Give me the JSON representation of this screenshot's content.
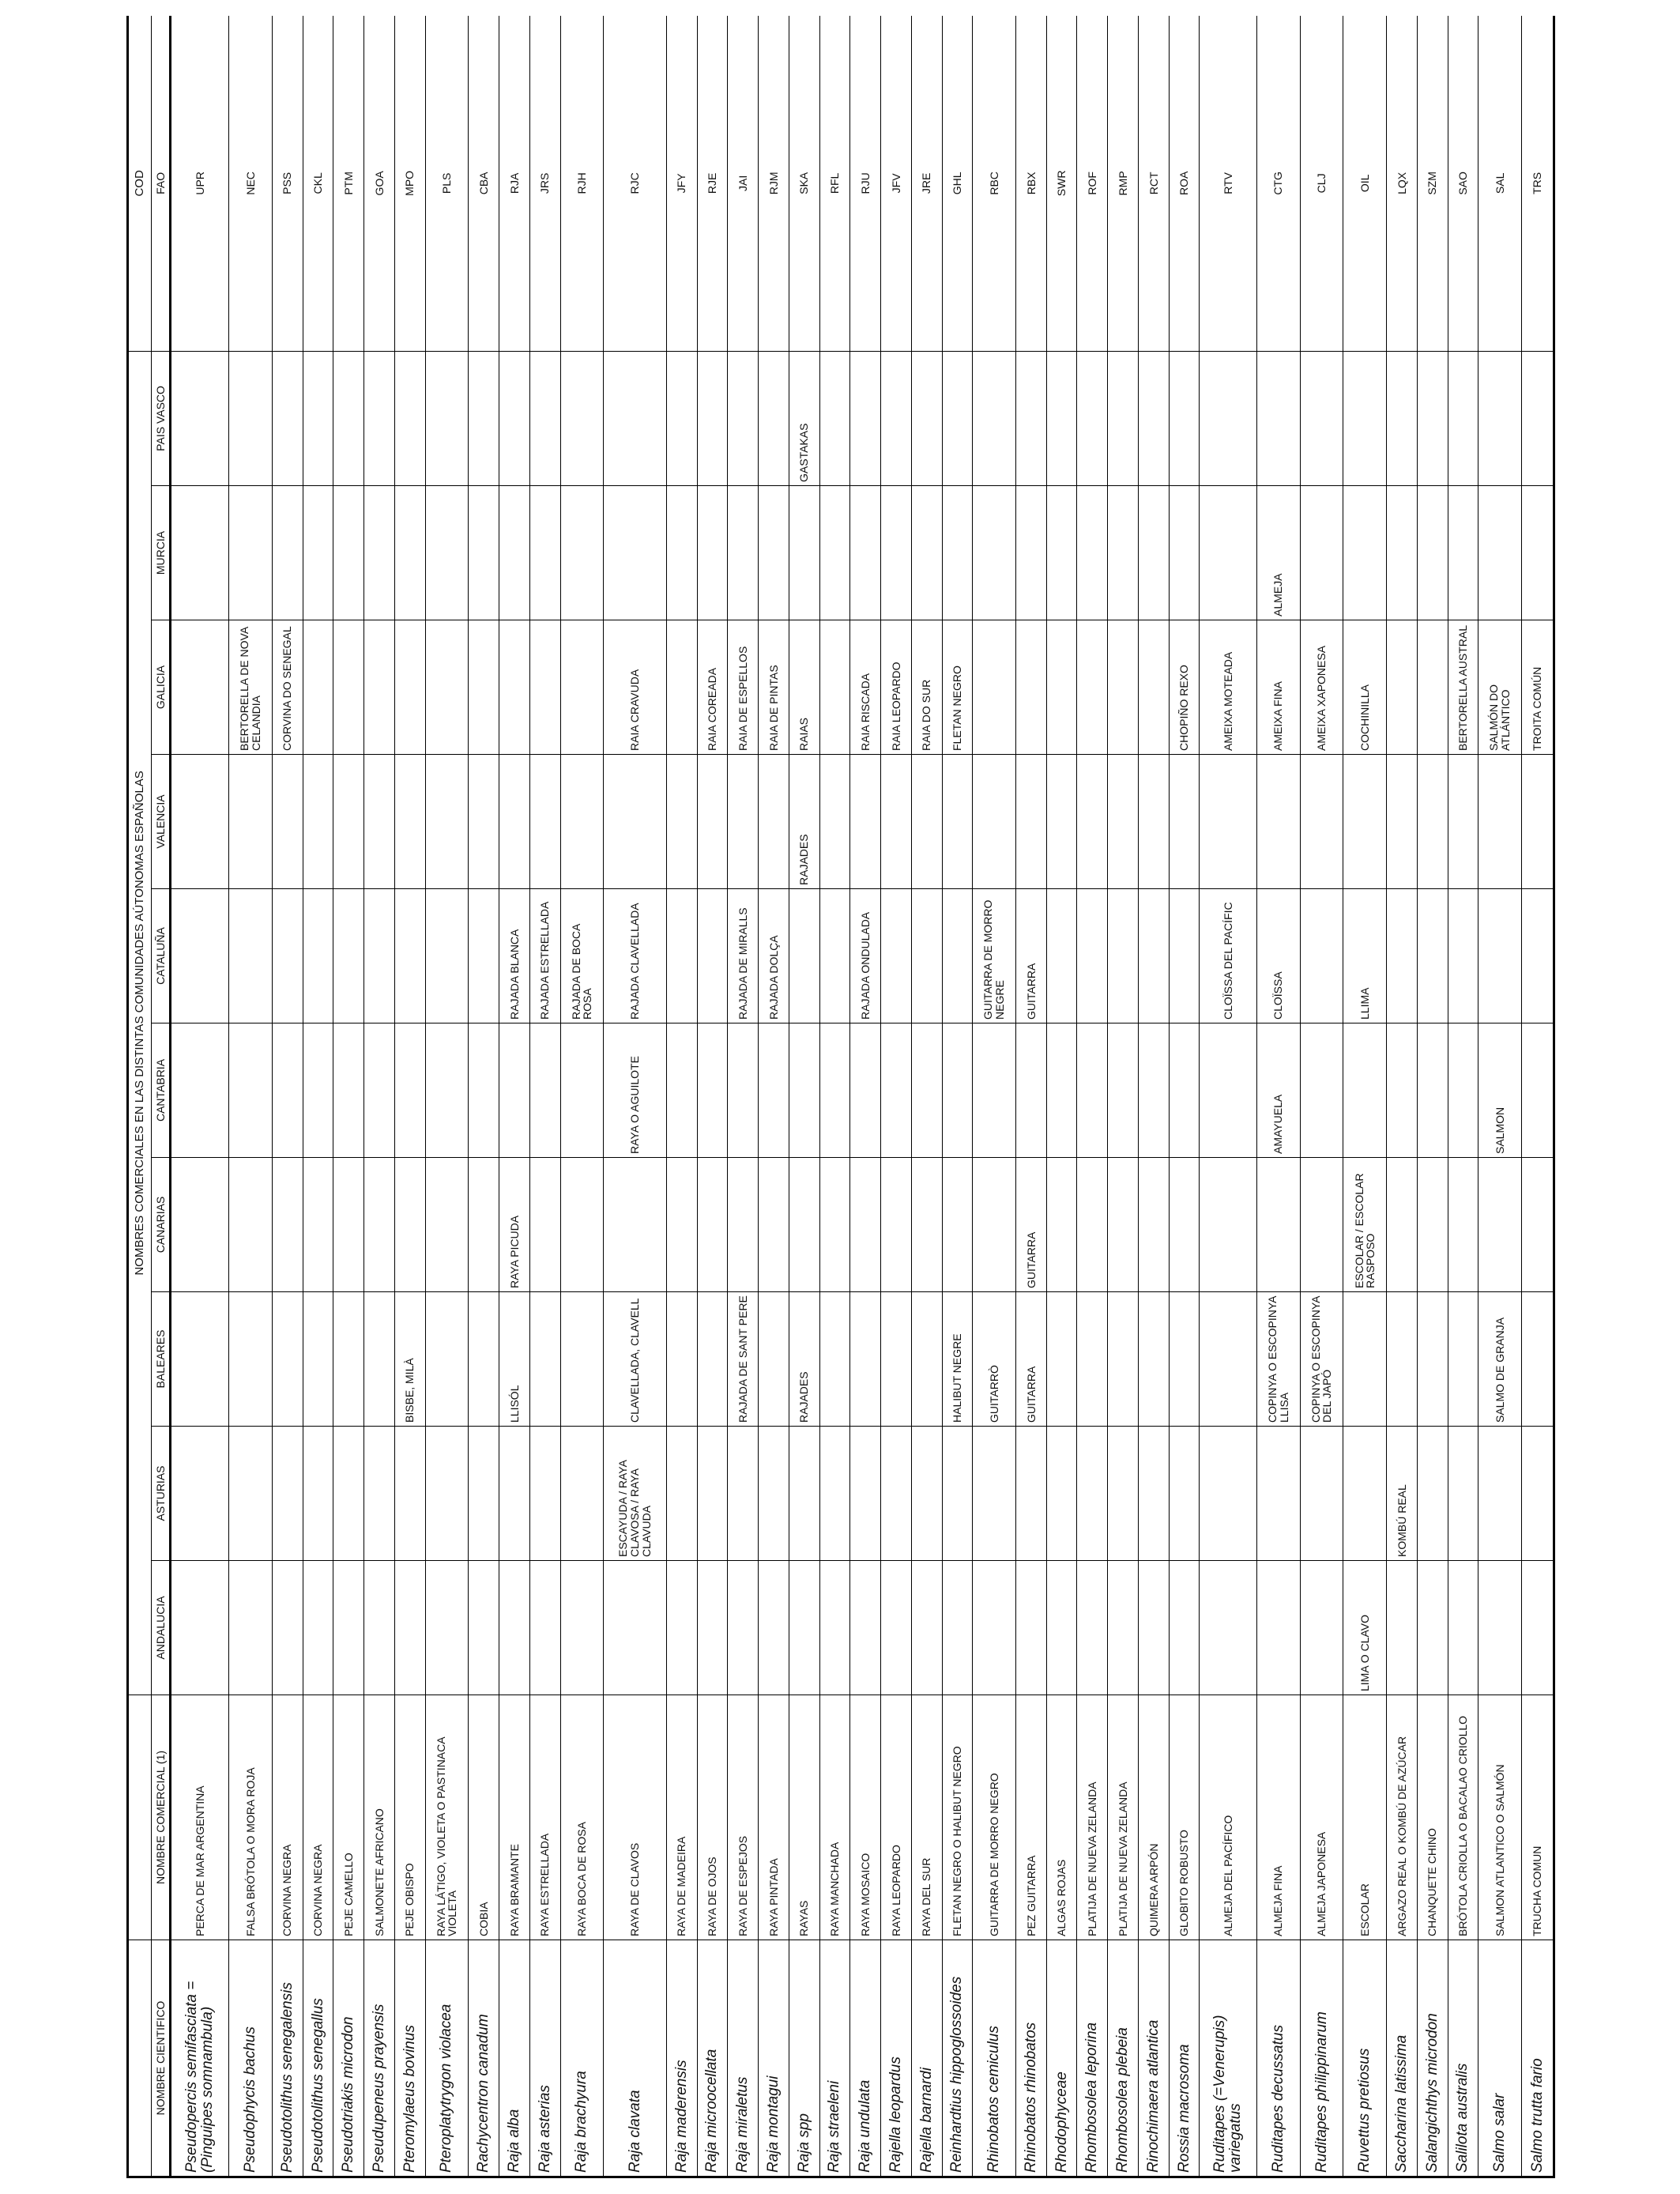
{
  "headers": {
    "sci": "NOMBRE CIENTIFICO",
    "com": "NOMBRE COMERCIAL (1)",
    "group": "NOMBRES COMERCIALES EN LAS DISTINTAS COMUNIDADES AÚTONOMAS ESPAÑOLAS",
    "regions": [
      "ANDALUCIA",
      "ASTURIAS",
      "BALEARES",
      "CANARIAS",
      "CANTABRIA",
      "CATALUÑA",
      "VALENCIA",
      "GALICIA",
      "MURCIA",
      "PAIS VASCO"
    ],
    "cod": "COD",
    "fao": "FAO"
  },
  "rows": [
    {
      "sci": "Pseudopercis semifasciata =(Pinguipes somnambula)",
      "com": "PERCA DE MAR ARGENTINA",
      "regions": [
        "",
        "",
        "",
        "",
        "",
        "",
        "",
        "",
        "",
        ""
      ],
      "fao": "UPR"
    },
    {
      "sci": "Pseudophycis bachus",
      "com": "FALSA BRÓTOLA O MORA ROJA",
      "regions": [
        "",
        "",
        "",
        "",
        "",
        "",
        "",
        "BERTORELLA DE NOVA CELANDIA",
        "",
        ""
      ],
      "fao": "NEC"
    },
    {
      "sci": "Pseudotolithus senegalensis",
      "com": "CORVINA NEGRA",
      "regions": [
        "",
        "",
        "",
        "",
        "",
        "",
        "",
        "CORVINA DO SENEGAL",
        "",
        ""
      ],
      "fao": "PSS"
    },
    {
      "sci": "Pseudotolithus senegallus",
      "com": "CORVINA NEGRA",
      "regions": [
        "",
        "",
        "",
        "",
        "",
        "",
        "",
        "",
        "",
        ""
      ],
      "fao": "CKL"
    },
    {
      "sci": "Pseudotriakis microdon",
      "com": "PEJE CAMELLO",
      "regions": [
        "",
        "",
        "",
        "",
        "",
        "",
        "",
        "",
        "",
        ""
      ],
      "fao": "PTM"
    },
    {
      "sci": "Pseudupeneus prayensis",
      "com": "SALMONETE AFRICANO",
      "regions": [
        "",
        "",
        "",
        "",
        "",
        "",
        "",
        "",
        "",
        ""
      ],
      "fao": "GOA"
    },
    {
      "sci": "Pteromylaeus bovinus",
      "com": "PEJE OBISPO",
      "regions": [
        "",
        "",
        "BISBE, MILÀ",
        "",
        "",
        "",
        "",
        "",
        "",
        ""
      ],
      "fao": "MPO"
    },
    {
      "sci": "Pteroplatytrygon violacea",
      "com": "RAYA LÁTIGO, VIOLETA O PASTINACA VIOLETA",
      "regions": [
        "",
        "",
        "",
        "",
        "",
        "",
        "",
        "",
        "",
        ""
      ],
      "fao": "PLS"
    },
    {
      "sci": "Rachycentron canadum",
      "com": "COBIA",
      "regions": [
        "",
        "",
        "",
        "",
        "",
        "",
        "",
        "",
        "",
        ""
      ],
      "fao": "CBA"
    },
    {
      "sci": "Raja alba",
      "com": "RAYA BRAMANTE",
      "regions": [
        "",
        "",
        "LLISÓL",
        "RAYA PICUDA",
        "",
        "RAJADA BLANCA",
        "",
        "",
        "",
        ""
      ],
      "fao": "RJA"
    },
    {
      "sci": "Raja asterias",
      "com": "RAYA ESTRELLADA",
      "regions": [
        "",
        "",
        "",
        "",
        "",
        "RAJADA ESTRELLADA",
        "",
        "",
        "",
        ""
      ],
      "fao": "JRS"
    },
    {
      "sci": "Raja brachyura",
      "com": "RAYA BOCA DE ROSA",
      "regions": [
        "",
        "",
        "",
        "",
        "",
        "RAJADA DE BOCA ROSA",
        "",
        "",
        "",
        ""
      ],
      "fao": "RJH"
    },
    {
      "sci": "Raja clavata",
      "com": "RAYA DE CLAVOS",
      "regions": [
        "",
        "ESCAYUDA / RAYA CLAVOSA / RAYA CLAVUDA",
        "CLAVELLADA, CLAVELL",
        "",
        "RAYA O AGUILOTE",
        "RAJADA CLAVELLADA",
        "",
        "RAIA CRAVUDA",
        "",
        ""
      ],
      "fao": "RJC"
    },
    {
      "sci": "Raja maderensis",
      "com": "RAYA DE MADEIRA",
      "regions": [
        "",
        "",
        "",
        "",
        "",
        "",
        "",
        "",
        "",
        ""
      ],
      "fao": "JFY"
    },
    {
      "sci": "Raja microocellata",
      "com": "RAYA DE OJOS",
      "regions": [
        "",
        "",
        "",
        "",
        "",
        "",
        "",
        "RAIA COREADA",
        "",
        ""
      ],
      "fao": "RJE"
    },
    {
      "sci": "Raja miraletus",
      "com": "RAYA DE ESPEJOS",
      "regions": [
        "",
        "",
        "RAJADA DE SANT PERE",
        "",
        "",
        "RAJADA DE MIRALLS",
        "",
        "RAIA DE ESPELLOS",
        "",
        ""
      ],
      "fao": "JAI"
    },
    {
      "sci": "Raja montagui",
      "com": "RAYA PINTADA",
      "regions": [
        "",
        "",
        "",
        "",
        "",
        "RAJADA DOLÇA",
        "",
        "RAIA DE PINTAS",
        "",
        ""
      ],
      "fao": "RJM"
    },
    {
      "sci": "Raja spp",
      "com": "RAYAS",
      "regions": [
        "",
        "",
        "RAJADES",
        "",
        "",
        "",
        "RAJADES",
        "RAIAS",
        "",
        "GASTAKAS"
      ],
      "fao": "SKA"
    },
    {
      "sci": "Raja straeleni",
      "com": "RAYA MANCHADA",
      "regions": [
        "",
        "",
        "",
        "",
        "",
        "",
        "",
        "",
        "",
        ""
      ],
      "fao": "RFL"
    },
    {
      "sci": "Raja undulata",
      "com": "RAYA MOSAICO",
      "regions": [
        "",
        "",
        "",
        "",
        "",
        "RAJADA ONDULADA",
        "",
        "RAIA RISCADA",
        "",
        ""
      ],
      "fao": "RJU"
    },
    {
      "sci": "Rajella leopardus",
      "com": "RAYA LEOPARDO",
      "regions": [
        "",
        "",
        "",
        "",
        "",
        "",
        "",
        "RAIA LEOPARDO",
        "",
        ""
      ],
      "fao": "JFV"
    },
    {
      "sci": "Rajella barnardi",
      "com": "RAYA DEL SUR",
      "regions": [
        "",
        "",
        "",
        "",
        "",
        "",
        "",
        "RAIA DO SUR",
        "",
        ""
      ],
      "fao": "JRE"
    },
    {
      "sci": "Reinhardtius hippoglossoides",
      "com": "FLETAN NEGRO O HALIBUT NEGRO",
      "regions": [
        "",
        "",
        "HALIBUT NEGRE",
        "",
        "",
        "",
        "",
        "FLETAN NEGRO",
        "",
        ""
      ],
      "fao": "GHL"
    },
    {
      "sci": "Rhinobatos cemiculus",
      "com": "GUITARRA DE MORRO NEGRO",
      "regions": [
        "",
        "",
        "GUITARRÒ",
        "",
        "",
        "GUITARRA DE MORRO NEGRE",
        "",
        "",
        "",
        ""
      ],
      "fao": "RBC"
    },
    {
      "sci": "Rhinobatos rhinobatos",
      "com": "PEZ GUITARRA",
      "regions": [
        "",
        "",
        "GUITARRA",
        "GUITARRA",
        "",
        "GUITARRA",
        "",
        "",
        "",
        ""
      ],
      "fao": "RBX"
    },
    {
      "sci": "Rhodophyceae",
      "com": "ALGAS ROJAS",
      "regions": [
        "",
        "",
        "",
        "",
        "",
        "",
        "",
        "",
        "",
        ""
      ],
      "fao": "SWR"
    },
    {
      "sci": "Rhombosolea leporina",
      "com": "PLATIJA DE NUEVA ZELANDA",
      "regions": [
        "",
        "",
        "",
        "",
        "",
        "",
        "",
        "",
        "",
        ""
      ],
      "fao": "ROF"
    },
    {
      "sci": "Rhombosolea plebeia",
      "com": "PLATIJA DE NUEVA ZELANDA",
      "regions": [
        "",
        "",
        "",
        "",
        "",
        "",
        "",
        "",
        "",
        ""
      ],
      "fao": "RMP"
    },
    {
      "sci": "Rinochimaera atlantica",
      "com": "QUIMERA ARPÓN",
      "regions": [
        "",
        "",
        "",
        "",
        "",
        "",
        "",
        "",
        "",
        ""
      ],
      "fao": "RCT"
    },
    {
      "sci": "Rossia macrosoma",
      "com": "GLOBITO ROBUSTO",
      "regions": [
        "",
        "",
        "",
        "",
        "",
        "",
        "",
        "CHOPIÑO REXO",
        "",
        ""
      ],
      "fao": "ROA"
    },
    {
      "sci": "Ruditapes (=Venerupis) variegatus",
      "com": "ALMEJA DEL PACÍFICO",
      "regions": [
        "",
        "",
        "",
        "",
        "",
        "CLOÏSSA DEL PACÍFIC",
        "",
        "AMEIXA MOTEADA",
        "",
        ""
      ],
      "fao": "RTV"
    },
    {
      "sci": "Ruditapes decussatus",
      "com": "ALMEJA FINA",
      "regions": [
        "",
        "",
        "COPINYA O ESCOPINYA LLISA",
        "",
        "AMAYUELA",
        "CLOÏSSA",
        "",
        "AMEIXA FINA",
        "ALMEJA",
        ""
      ],
      "fao": "CTG"
    },
    {
      "sci": "Ruditapes philippinarum",
      "com": "ALMEJA JAPONESA",
      "regions": [
        "",
        "",
        "COPINYA O ESCOPINYA DEL JAPÓ",
        "",
        "",
        "",
        "",
        "AMEIXA XAPONESA",
        "",
        ""
      ],
      "fao": "CLJ"
    },
    {
      "sci": "Ruvettus pretiosus",
      "com": "ESCOLAR",
      "regions": [
        "LIMA O CLAVO",
        "",
        "",
        "ESCOLAR / ESCOLAR RASPOSO",
        "",
        "LLIMA",
        "",
        "COCHINILLA",
        "",
        ""
      ],
      "fao": "OIL"
    },
    {
      "sci": "Saccharina latissima",
      "com": "ARGAZO REAL O KOMBÚ DE AZÚCAR",
      "regions": [
        "",
        "KOMBÚ REAL",
        "",
        "",
        "",
        "",
        "",
        "",
        "",
        ""
      ],
      "fao": "LQX"
    },
    {
      "sci": "Salangichthys microdon",
      "com": "CHANQUETE CHINO",
      "regions": [
        "",
        "",
        "",
        "",
        "",
        "",
        "",
        "",
        "",
        ""
      ],
      "fao": "SZM"
    },
    {
      "sci": "Salilota australis",
      "com": "BRÓTOLA CRIOLLA O BACALAO CRIOLLO",
      "regions": [
        "",
        "",
        "",
        "",
        "",
        "",
        "",
        "BERTORELLA AUSTRAL",
        "",
        ""
      ],
      "fao": "SAO"
    },
    {
      "sci": "Salmo salar",
      "com": "SALMON ATLANTICO O SALMÓN",
      "regions": [
        "",
        "",
        "SALMO DE GRANJA",
        "",
        "SALMON",
        "",
        "",
        "SALMÓN DO ATLÁNTICO",
        "",
        ""
      ],
      "fao": "SAL"
    },
    {
      "sci": "Salmo trutta fario",
      "com": "TRUCHA COMUN",
      "regions": [
        "",
        "",
        "",
        "",
        "",
        "",
        "",
        "TROITA COMÚN",
        "",
        ""
      ],
      "fao": "TRS"
    }
  ]
}
